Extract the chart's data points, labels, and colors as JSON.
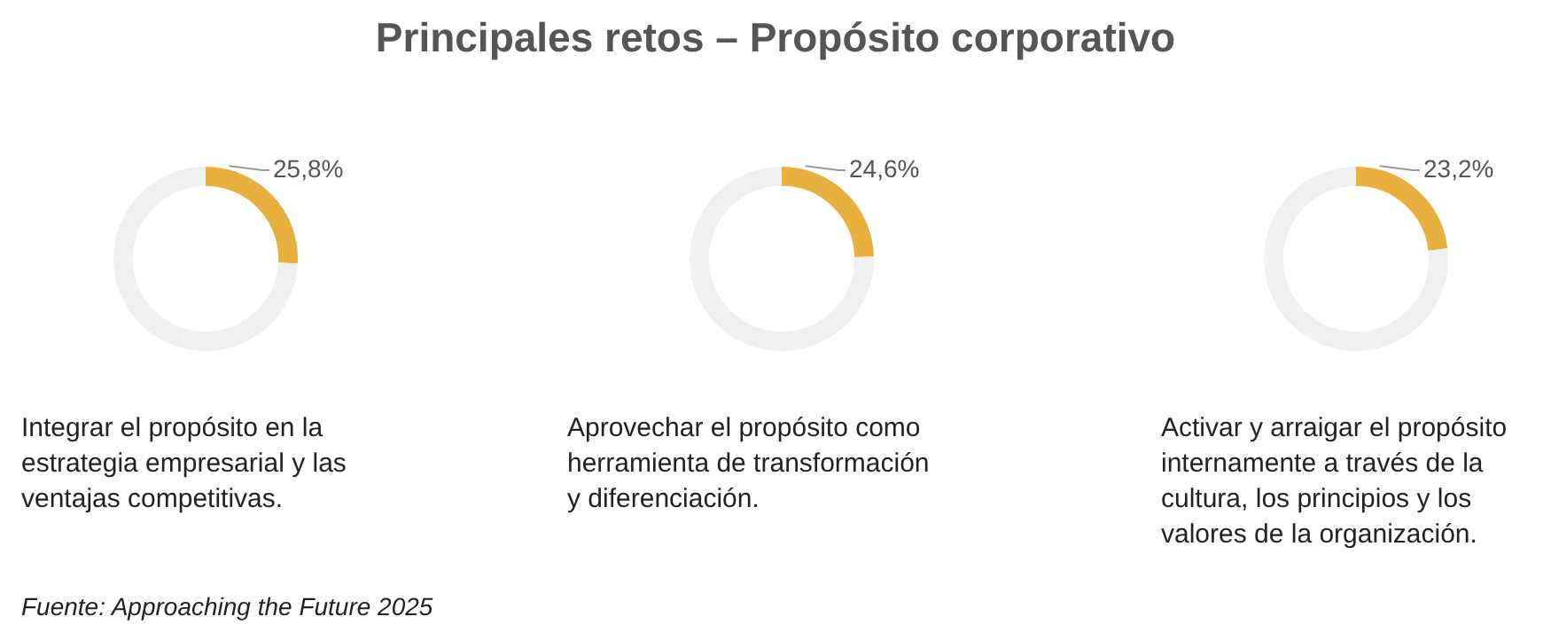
{
  "chart_data": [
    {
      "type": "donut",
      "xlabel": "Integrar el propósito en la estrategia empresarial y las ventajas competitivas.",
      "categories": [
        null,
        null
      ],
      "values": [
        25.8,
        74.2
      ],
      "colors": [
        "#e8b03f",
        "#f0f0f0"
      ],
      "value_labels": [
        "25,8%",
        null
      ],
      "annotations": [
        "Fuente: Approaching the Future 2025"
      ]
    },
    {
      "type": "donut",
      "title": "Principales retos – Propósito corporativo",
      "xlabel": "Aprovechar el propósito como herramienta de transformación y diferenciación.",
      "categories": [
        null,
        null
      ],
      "values": [
        24.6,
        75.4
      ],
      "colors": [
        "#e8b03f",
        "#f0f0f0"
      ],
      "value_labels": [
        "24,6%",
        null
      ]
    },
    {
      "type": "donut",
      "xlabel": "Activar y arraigar el propósito internamente a través de la cultura, los principios y los valores de la organización.",
      "categories": [
        null,
        null
      ],
      "values": [
        23.2,
        76.8
      ],
      "colors": [
        "#e8b03f",
        "#f0f0f0"
      ],
      "value_labels": [
        "23,2%",
        null
      ]
    }
  ]
}
